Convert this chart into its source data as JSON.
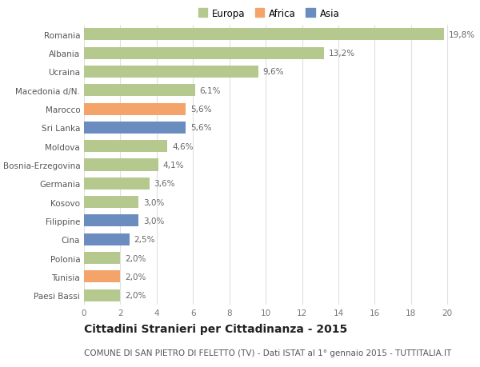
{
  "categories": [
    "Romania",
    "Albania",
    "Ucraina",
    "Macedonia d/N.",
    "Marocco",
    "Sri Lanka",
    "Moldova",
    "Bosnia-Erzegovina",
    "Germania",
    "Kosovo",
    "Filippine",
    "Cina",
    "Polonia",
    "Tunisia",
    "Paesi Bassi"
  ],
  "values": [
    19.8,
    13.2,
    9.6,
    6.1,
    5.6,
    5.6,
    4.6,
    4.1,
    3.6,
    3.0,
    3.0,
    2.5,
    2.0,
    2.0,
    2.0
  ],
  "labels": [
    "19,8%",
    "13,2%",
    "9,6%",
    "6,1%",
    "5,6%",
    "5,6%",
    "4,6%",
    "4,1%",
    "3,6%",
    "3,0%",
    "3,0%",
    "2,5%",
    "2,0%",
    "2,0%",
    "2,0%"
  ],
  "continent": [
    "Europa",
    "Europa",
    "Europa",
    "Europa",
    "Africa",
    "Asia",
    "Europa",
    "Europa",
    "Europa",
    "Europa",
    "Asia",
    "Asia",
    "Europa",
    "Africa",
    "Europa"
  ],
  "colors": {
    "Europa": "#b5c98e",
    "Africa": "#f4a46a",
    "Asia": "#6b8cbf"
  },
  "xlim": [
    0,
    21
  ],
  "xticks": [
    0,
    2,
    4,
    6,
    8,
    10,
    12,
    14,
    16,
    18,
    20
  ],
  "title": "Cittadini Stranieri per Cittadinanza - 2015",
  "subtitle": "COMUNE DI SAN PIETRO DI FELETTO (TV) - Dati ISTAT al 1° gennaio 2015 - TUTTITALIA.IT",
  "background_color": "#ffffff",
  "grid_color": "#e0e0e0",
  "bar_height": 0.65,
  "title_fontsize": 10,
  "subtitle_fontsize": 7.5,
  "label_fontsize": 7.5,
  "tick_fontsize": 7.5,
  "ytick_fontsize": 7.5,
  "legend_fontsize": 8.5
}
